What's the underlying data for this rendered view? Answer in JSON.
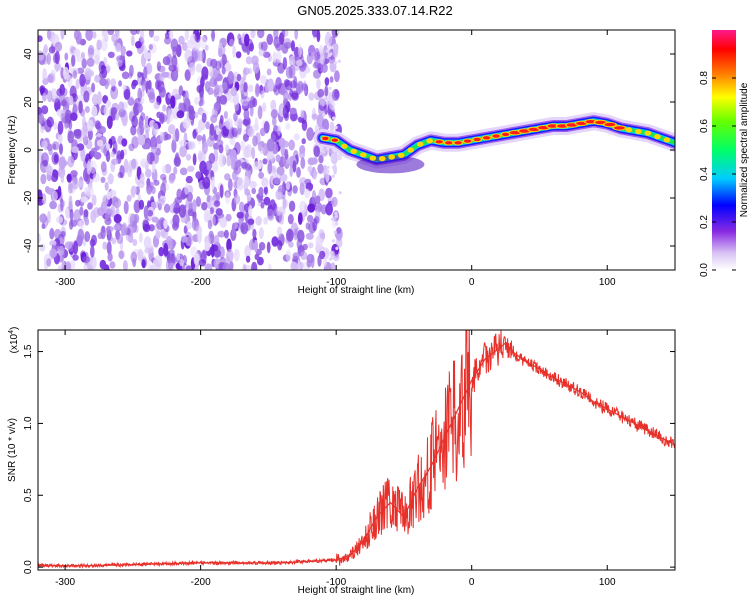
{
  "title": "GN05.2025.333.07.14.R22",
  "chart_data": [
    {
      "type": "heatmap",
      "title": "GN05.2025.333.07.14.R22",
      "xlabel": "Height of straight line (km)",
      "ylabel": "Frequency (Hz)",
      "xlim": [
        -320,
        150
      ],
      "ylim": [
        -50,
        50
      ],
      "xticks": [
        -300,
        -200,
        -100,
        0,
        100
      ],
      "yticks": [
        -40,
        -20,
        0,
        20,
        40
      ],
      "grid": false,
      "ridge": {
        "name": "peak frequency",
        "x": [
          -110,
          -100,
          -90,
          -80,
          -70,
          -60,
          -50,
          -40,
          -30,
          -20,
          -10,
          0,
          10,
          20,
          30,
          40,
          50,
          60,
          70,
          80,
          90,
          100,
          110,
          120,
          130,
          140,
          150
        ],
        "y": [
          5,
          4,
          0,
          -2,
          -4,
          -3,
          -2,
          2,
          4,
          3,
          3,
          4,
          5,
          6,
          7,
          8,
          9,
          10,
          10,
          11,
          12,
          11,
          9,
          8,
          7,
          5,
          3
        ]
      },
      "noise_region_x": [
        -320,
        -105
      ],
      "colorbar": {
        "label": "Normalized spectral amplitude",
        "range": [
          0,
          1
        ],
        "ticks": [
          "0.0",
          "0.2",
          "0.4",
          "0.6",
          "0.8"
        ]
      }
    },
    {
      "type": "line",
      "xlabel": "Height of straight line (km)",
      "ylabel": "SNR (10 * v/v)",
      "multiplier": "(x10",
      "multiplier_exp": "4",
      "xlim": [
        -320,
        150
      ],
      "ylim": [
        -0.02,
        1.65
      ],
      "xticks": [
        -300,
        -200,
        -100,
        0,
        100
      ],
      "yticks": [
        "0.0",
        "0.5",
        "1.0",
        "1.5"
      ],
      "ytick_values": [
        0,
        0.5,
        1.0,
        1.5
      ],
      "grid": false,
      "series": [
        {
          "name": "SNR",
          "color": "#e8302a",
          "x": [
            -320,
            -280,
            -240,
            -200,
            -180,
            -160,
            -140,
            -120,
            -100,
            -90,
            -80,
            -70,
            -60,
            -50,
            -40,
            -30,
            -20,
            -10,
            0,
            10,
            20,
            25,
            30,
            40,
            50,
            60,
            70,
            80,
            90,
            100,
            110,
            120,
            130,
            140,
            150
          ],
          "y": [
            0.01,
            0.01,
            0.02,
            0.03,
            0.03,
            0.03,
            0.03,
            0.04,
            0.05,
            0.08,
            0.18,
            0.35,
            0.45,
            0.35,
            0.55,
            0.7,
            0.9,
            1.1,
            1.3,
            1.45,
            1.52,
            1.56,
            1.5,
            1.43,
            1.38,
            1.32,
            1.27,
            1.22,
            1.15,
            1.1,
            1.05,
            1.0,
            0.95,
            0.9,
            0.85
          ]
        }
      ]
    }
  ]
}
